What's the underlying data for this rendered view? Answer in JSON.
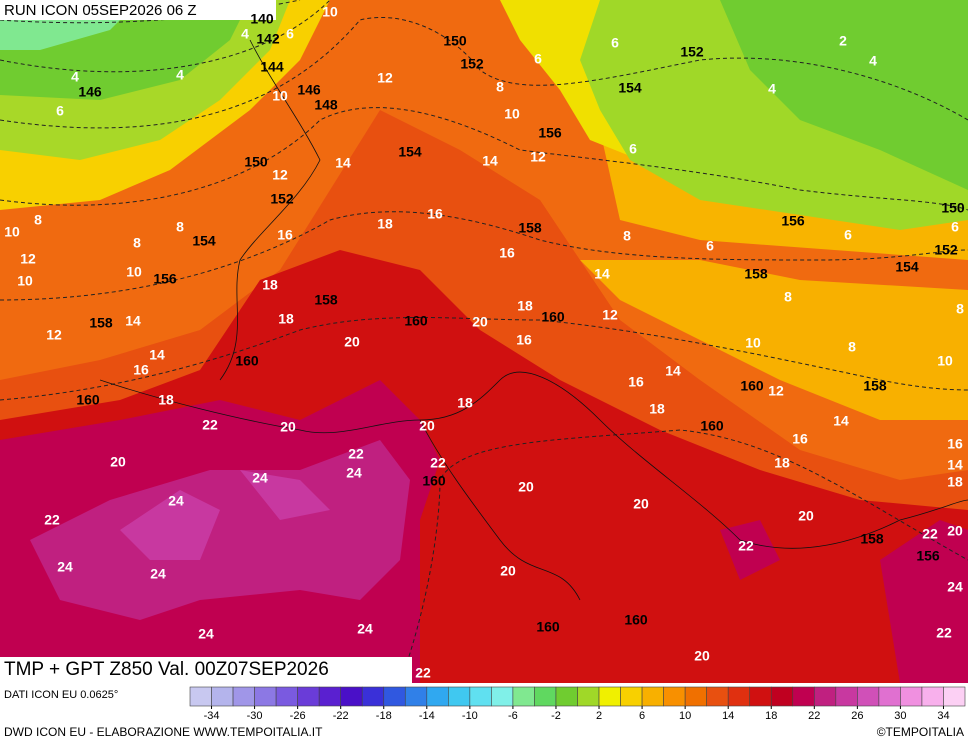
{
  "header": {
    "run": "RUN ICON 05SEP2026 06 Z",
    "title": "TMP + GPT Z850 Val. 00Z07SEP2026"
  },
  "footer": {
    "source": "DATI ICON EU 0.0625°",
    "credit": "DWD ICON EU - ELABORAZIONE WWW.TEMPOITALIA.IT",
    "brand": "©TEMPOITALIA"
  },
  "colorbar": {
    "range": [
      -36,
      36
    ],
    "ticks": [
      -34,
      -30,
      -26,
      -22,
      -18,
      -14,
      -10,
      -6,
      -2,
      2,
      6,
      10,
      14,
      18,
      22,
      26,
      30,
      34
    ],
    "colors": [
      "#c8c8f0",
      "#b4b4ec",
      "#a096e8",
      "#8c78e4",
      "#7a5ae0",
      "#6a3cd8",
      "#5a20d0",
      "#4a10c8",
      "#3a30d8",
      "#3058e0",
      "#3080e8",
      "#30a8f0",
      "#40c8f0",
      "#60e0f0",
      "#80f0e8",
      "#80e890",
      "#60d860",
      "#70cc30",
      "#a0d828",
      "#f0f000",
      "#f8d000",
      "#f8b000",
      "#f89000",
      "#f07000",
      "#e85010",
      "#e03010",
      "#d01010",
      "#c00020",
      "#c00050",
      "#c02080",
      "#c838a0",
      "#d050b8",
      "#e070d0",
      "#f090e0",
      "#f8b0ec",
      "#fcd0f4"
    ]
  },
  "map": {
    "temperature_labels": [
      10,
      4,
      6,
      4,
      4,
      6,
      10,
      12,
      6,
      2,
      4,
      4,
      6,
      8,
      10,
      12,
      6,
      14,
      14,
      12,
      16,
      18,
      16,
      8,
      8,
      10,
      12,
      10,
      8,
      10,
      18,
      16,
      8,
      6,
      6,
      6,
      14,
      18,
      20,
      16,
      12,
      18,
      14,
      12,
      20,
      14,
      16,
      10,
      8,
      8,
      8,
      10,
      12,
      14,
      16,
      18,
      18,
      18,
      22,
      20,
      20,
      14,
      16,
      18,
      16,
      14,
      18,
      20,
      22,
      22,
      24,
      24,
      24,
      20,
      20,
      20,
      22,
      22,
      20,
      22,
      24,
      24,
      20,
      24,
      24,
      24,
      22,
      20,
      22
    ],
    "height_labels": [
      140,
      142,
      144,
      146,
      146,
      148,
      150,
      152,
      152,
      154,
      156,
      154,
      150,
      152,
      154,
      156,
      158,
      158,
      158,
      160,
      160,
      160,
      160,
      156,
      150,
      152,
      154,
      158,
      160,
      158,
      160,
      160,
      158,
      156,
      160,
      160
    ]
  }
}
